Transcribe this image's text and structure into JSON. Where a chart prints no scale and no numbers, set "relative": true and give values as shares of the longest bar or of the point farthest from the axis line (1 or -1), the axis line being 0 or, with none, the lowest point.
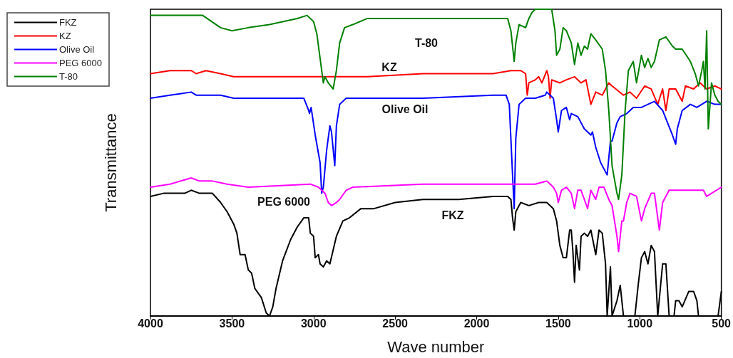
{
  "chart_data": {
    "type": "line",
    "xlabel": "Wave number",
    "ylabel": "Transmittance",
    "relative": true,
    "xlim": [
      4000,
      500
    ],
    "xticks": [
      4000,
      3500,
      3000,
      2500,
      2000,
      1500,
      1000,
      500
    ],
    "grid": false,
    "legend": "top left",
    "marker": "none",
    "line_style": "solid",
    "annotations": [
      "T-80",
      "KZ",
      "Olive Oil",
      "PEG 6000",
      "FKZ"
    ],
    "series": [
      {
        "name": "FKZ",
        "color": "#000000",
        "x": [
          4000,
          3920,
          3790,
          3750,
          3700,
          3620,
          3570,
          3530,
          3490,
          3470,
          3450,
          3420,
          3400,
          3380,
          3360,
          3320,
          3290,
          3270,
          3250,
          3230,
          3190,
          3140,
          3100,
          3060,
          3030,
          3020,
          3000,
          2990,
          2970,
          2960,
          2940,
          2920,
          2900,
          2860,
          2820,
          2780,
          2710,
          2630,
          2500,
          2330,
          2110,
          1900,
          1810,
          1790,
          1780,
          1770,
          1760,
          1730,
          1680,
          1620,
          1570,
          1530,
          1510,
          1490,
          1470,
          1450,
          1430,
          1420,
          1410,
          1400,
          1390,
          1370,
          1360,
          1340,
          1320,
          1300,
          1270,
          1250,
          1230,
          1210,
          1200,
          1180,
          1170,
          1140,
          1120,
          1100,
          1080,
          1030,
          1010,
          990,
          970,
          950,
          930,
          910,
          890,
          860,
          840,
          820,
          790,
          780,
          760,
          740,
          700,
          670,
          650,
          640,
          520,
          500
        ],
        "values": [
          0.39,
          0.4,
          0.4,
          0.41,
          0.4,
          0.4,
          0.37,
          0.34,
          0.3,
          0.27,
          0.2,
          0.2,
          0.15,
          0.14,
          0.09,
          0.06,
          0.01,
          0,
          0.03,
          0.09,
          0.18,
          0.25,
          0.29,
          0.32,
          0.32,
          0.27,
          0.26,
          0.19,
          0.2,
          0.17,
          0.16,
          0.18,
          0.17,
          0.26,
          0.31,
          0.32,
          0.35,
          0.35,
          0.37,
          0.38,
          0.38,
          0.39,
          0.39,
          0.38,
          0.32,
          0.28,
          0.34,
          0.37,
          0.36,
          0.37,
          0.37,
          0.35,
          0.31,
          0.23,
          0.19,
          0.19,
          0.28,
          0.28,
          0.21,
          0.11,
          0.23,
          0.15,
          0.26,
          0.27,
          0.26,
          0.28,
          0.2,
          0.28,
          0.27,
          0.17,
          0,
          0.16,
          0,
          0.05,
          0.1,
          0,
          0,
          0,
          0.1,
          0.19,
          0.21,
          0.17,
          0.23,
          0.21,
          0,
          0.17,
          0.17,
          0,
          0,
          0.05,
          0.05,
          0.03,
          0.08,
          0.08,
          0.05,
          0,
          0,
          0.08
        ]
      },
      {
        "name": "KZ",
        "color": "#ff0000",
        "x": [
          4000,
          3880,
          3750,
          3720,
          3660,
          3570,
          3490,
          3190,
          2970,
          2840,
          2670,
          2330,
          2160,
          1900,
          1790,
          1730,
          1700,
          1690,
          1680,
          1640,
          1620,
          1600,
          1570,
          1560,
          1550,
          1540,
          1490,
          1450,
          1400,
          1360,
          1330,
          1300,
          1270,
          1230,
          1190,
          1170,
          1100,
          1060,
          1020,
          970,
          930,
          890,
          860,
          840,
          820,
          780,
          740,
          720,
          670,
          630,
          590,
          540,
          500
        ],
        "values": [
          0.79,
          0.8,
          0.8,
          0.79,
          0.8,
          0.79,
          0.78,
          0.78,
          0.78,
          0.78,
          0.78,
          0.79,
          0.79,
          0.79,
          0.8,
          0.8,
          0.79,
          0.72,
          0.76,
          0.77,
          0.78,
          0.76,
          0.8,
          0.78,
          0.71,
          0.77,
          0.76,
          0.77,
          0.78,
          0.76,
          0.77,
          0.69,
          0.73,
          0.72,
          0.76,
          0.75,
          0.72,
          0.73,
          0.71,
          0.75,
          0.74,
          0.69,
          0.74,
          0.67,
          0.74,
          0.74,
          0.7,
          0.75,
          0.74,
          0.76,
          0.74,
          0.75,
          0.74
        ]
      },
      {
        "name": "Olive Oil",
        "color": "#0000ff",
        "x": [
          4000,
          3880,
          3750,
          3720,
          3660,
          3570,
          3490,
          3190,
          3100,
          3060,
          3030,
          3025,
          3015,
          2990,
          2960,
          2950,
          2940,
          2920,
          2900,
          2890,
          2870,
          2860,
          2840,
          2800,
          2330,
          1900,
          1820,
          1800,
          1780,
          1770,
          1760,
          1740,
          1700,
          1640,
          1580,
          1570,
          1550,
          1530,
          1510,
          1500,
          1480,
          1450,
          1430,
          1420,
          1380,
          1340,
          1300,
          1290,
          1270,
          1240,
          1220,
          1200,
          1180,
          1170,
          1140,
          1120,
          1080,
          1040,
          990,
          950,
          910,
          860,
          800,
          780,
          770,
          740,
          690,
          650,
          590,
          540,
          500
        ],
        "values": [
          0.71,
          0.72,
          0.73,
          0.72,
          0.72,
          0.72,
          0.71,
          0.71,
          0.71,
          0.71,
          0.67,
          0.66,
          0.68,
          0.59,
          0.5,
          0.4,
          0.42,
          0.54,
          0.62,
          0.6,
          0.49,
          0.62,
          0.69,
          0.71,
          0.71,
          0.72,
          0.72,
          0.69,
          0.46,
          0.35,
          0.58,
          0.69,
          0.71,
          0.71,
          0.72,
          0.73,
          0.72,
          0.71,
          0.64,
          0.6,
          0.67,
          0.68,
          0.64,
          0.66,
          0.65,
          0.61,
          0.59,
          0.6,
          0.55,
          0.5,
          0.48,
          0.46,
          0.57,
          0.57,
          0.63,
          0.65,
          0.66,
          0.68,
          0.68,
          0.69,
          0.7,
          0.67,
          0.59,
          0.56,
          0.61,
          0.67,
          0.69,
          0.68,
          0.7,
          0.69,
          0.69
        ]
      },
      {
        "name": "PEG 6000",
        "color": "#ff00ff",
        "x": [
          4000,
          3880,
          3750,
          3700,
          3620,
          3530,
          3400,
          3020,
          2970,
          2930,
          2910,
          2890,
          2860,
          2840,
          2800,
          2760,
          2330,
          1900,
          1640,
          1570,
          1530,
          1510,
          1500,
          1480,
          1450,
          1420,
          1400,
          1380,
          1360,
          1320,
          1300,
          1270,
          1250,
          1220,
          1190,
          1170,
          1140,
          1130,
          1110,
          1100,
          1080,
          1060,
          1020,
          990,
          970,
          930,
          910,
          880,
          860,
          820,
          610,
          590,
          560,
          500
        ],
        "values": [
          0.42,
          0.43,
          0.45,
          0.44,
          0.44,
          0.43,
          0.42,
          0.43,
          0.42,
          0.4,
          0.37,
          0.36,
          0.37,
          0.38,
          0.41,
          0.42,
          0.43,
          0.43,
          0.43,
          0.44,
          0.42,
          0.4,
          0.37,
          0.41,
          0.42,
          0.4,
          0.35,
          0.41,
          0.41,
          0.35,
          0.41,
          0.38,
          0.42,
          0.42,
          0.38,
          0.36,
          0.26,
          0.21,
          0.31,
          0.31,
          0.37,
          0.4,
          0.39,
          0.31,
          0.35,
          0.4,
          0.4,
          0.28,
          0.37,
          0.41,
          0.41,
          0.39,
          0.4,
          0.42
        ]
      },
      {
        "name": "T-80",
        "color": "#008000",
        "x": [
          4000,
          3750,
          3680,
          3570,
          3500,
          3400,
          3270,
          3100,
          3040,
          3000,
          2980,
          2950,
          2940,
          2930,
          2910,
          2880,
          2860,
          2840,
          2810,
          2760,
          2670,
          2500,
          2330,
          1980,
          1810,
          1790,
          1770,
          1760,
          1740,
          1700,
          1680,
          1660,
          1640,
          1550,
          1540,
          1520,
          1510,
          1490,
          1470,
          1450,
          1420,
          1400,
          1380,
          1360,
          1340,
          1320,
          1300,
          1270,
          1230,
          1210,
          1190,
          1170,
          1140,
          1130,
          1110,
          1090,
          1070,
          1040,
          1020,
          990,
          970,
          950,
          930,
          910,
          880,
          840,
          800,
          780,
          740,
          690,
          660,
          640,
          620,
          610,
          600,
          590,
          580,
          560,
          540,
          520,
          500
        ],
        "values": [
          0.98,
          0.98,
          0.98,
          0.94,
          0.93,
          0.94,
          0.95,
          0.97,
          0.98,
          0.96,
          0.92,
          0.8,
          0.76,
          0.78,
          0.76,
          0.74,
          0.8,
          0.89,
          0.94,
          0.95,
          0.97,
          0.97,
          0.97,
          0.97,
          0.97,
          0.93,
          0.83,
          0.89,
          0.95,
          0.94,
          0.97,
          0.99,
          1,
          1,
          1,
          0.93,
          0.85,
          0.87,
          0.94,
          0.93,
          0.89,
          0.82,
          0.89,
          0.85,
          0.88,
          0.87,
          0.92,
          0.9,
          0.87,
          0.8,
          0.67,
          0.49,
          0.4,
          0.38,
          0.46,
          0.67,
          0.8,
          0.83,
          0.76,
          0.85,
          0.81,
          0.84,
          0.81,
          0.83,
          0.9,
          0.91,
          0.88,
          0.87,
          0.87,
          0.83,
          0.79,
          0.75,
          0.8,
          0.83,
          0.74,
          0.93,
          0.61,
          0.76,
          0.72,
          0.7,
          0.69
        ]
      }
    ]
  }
}
